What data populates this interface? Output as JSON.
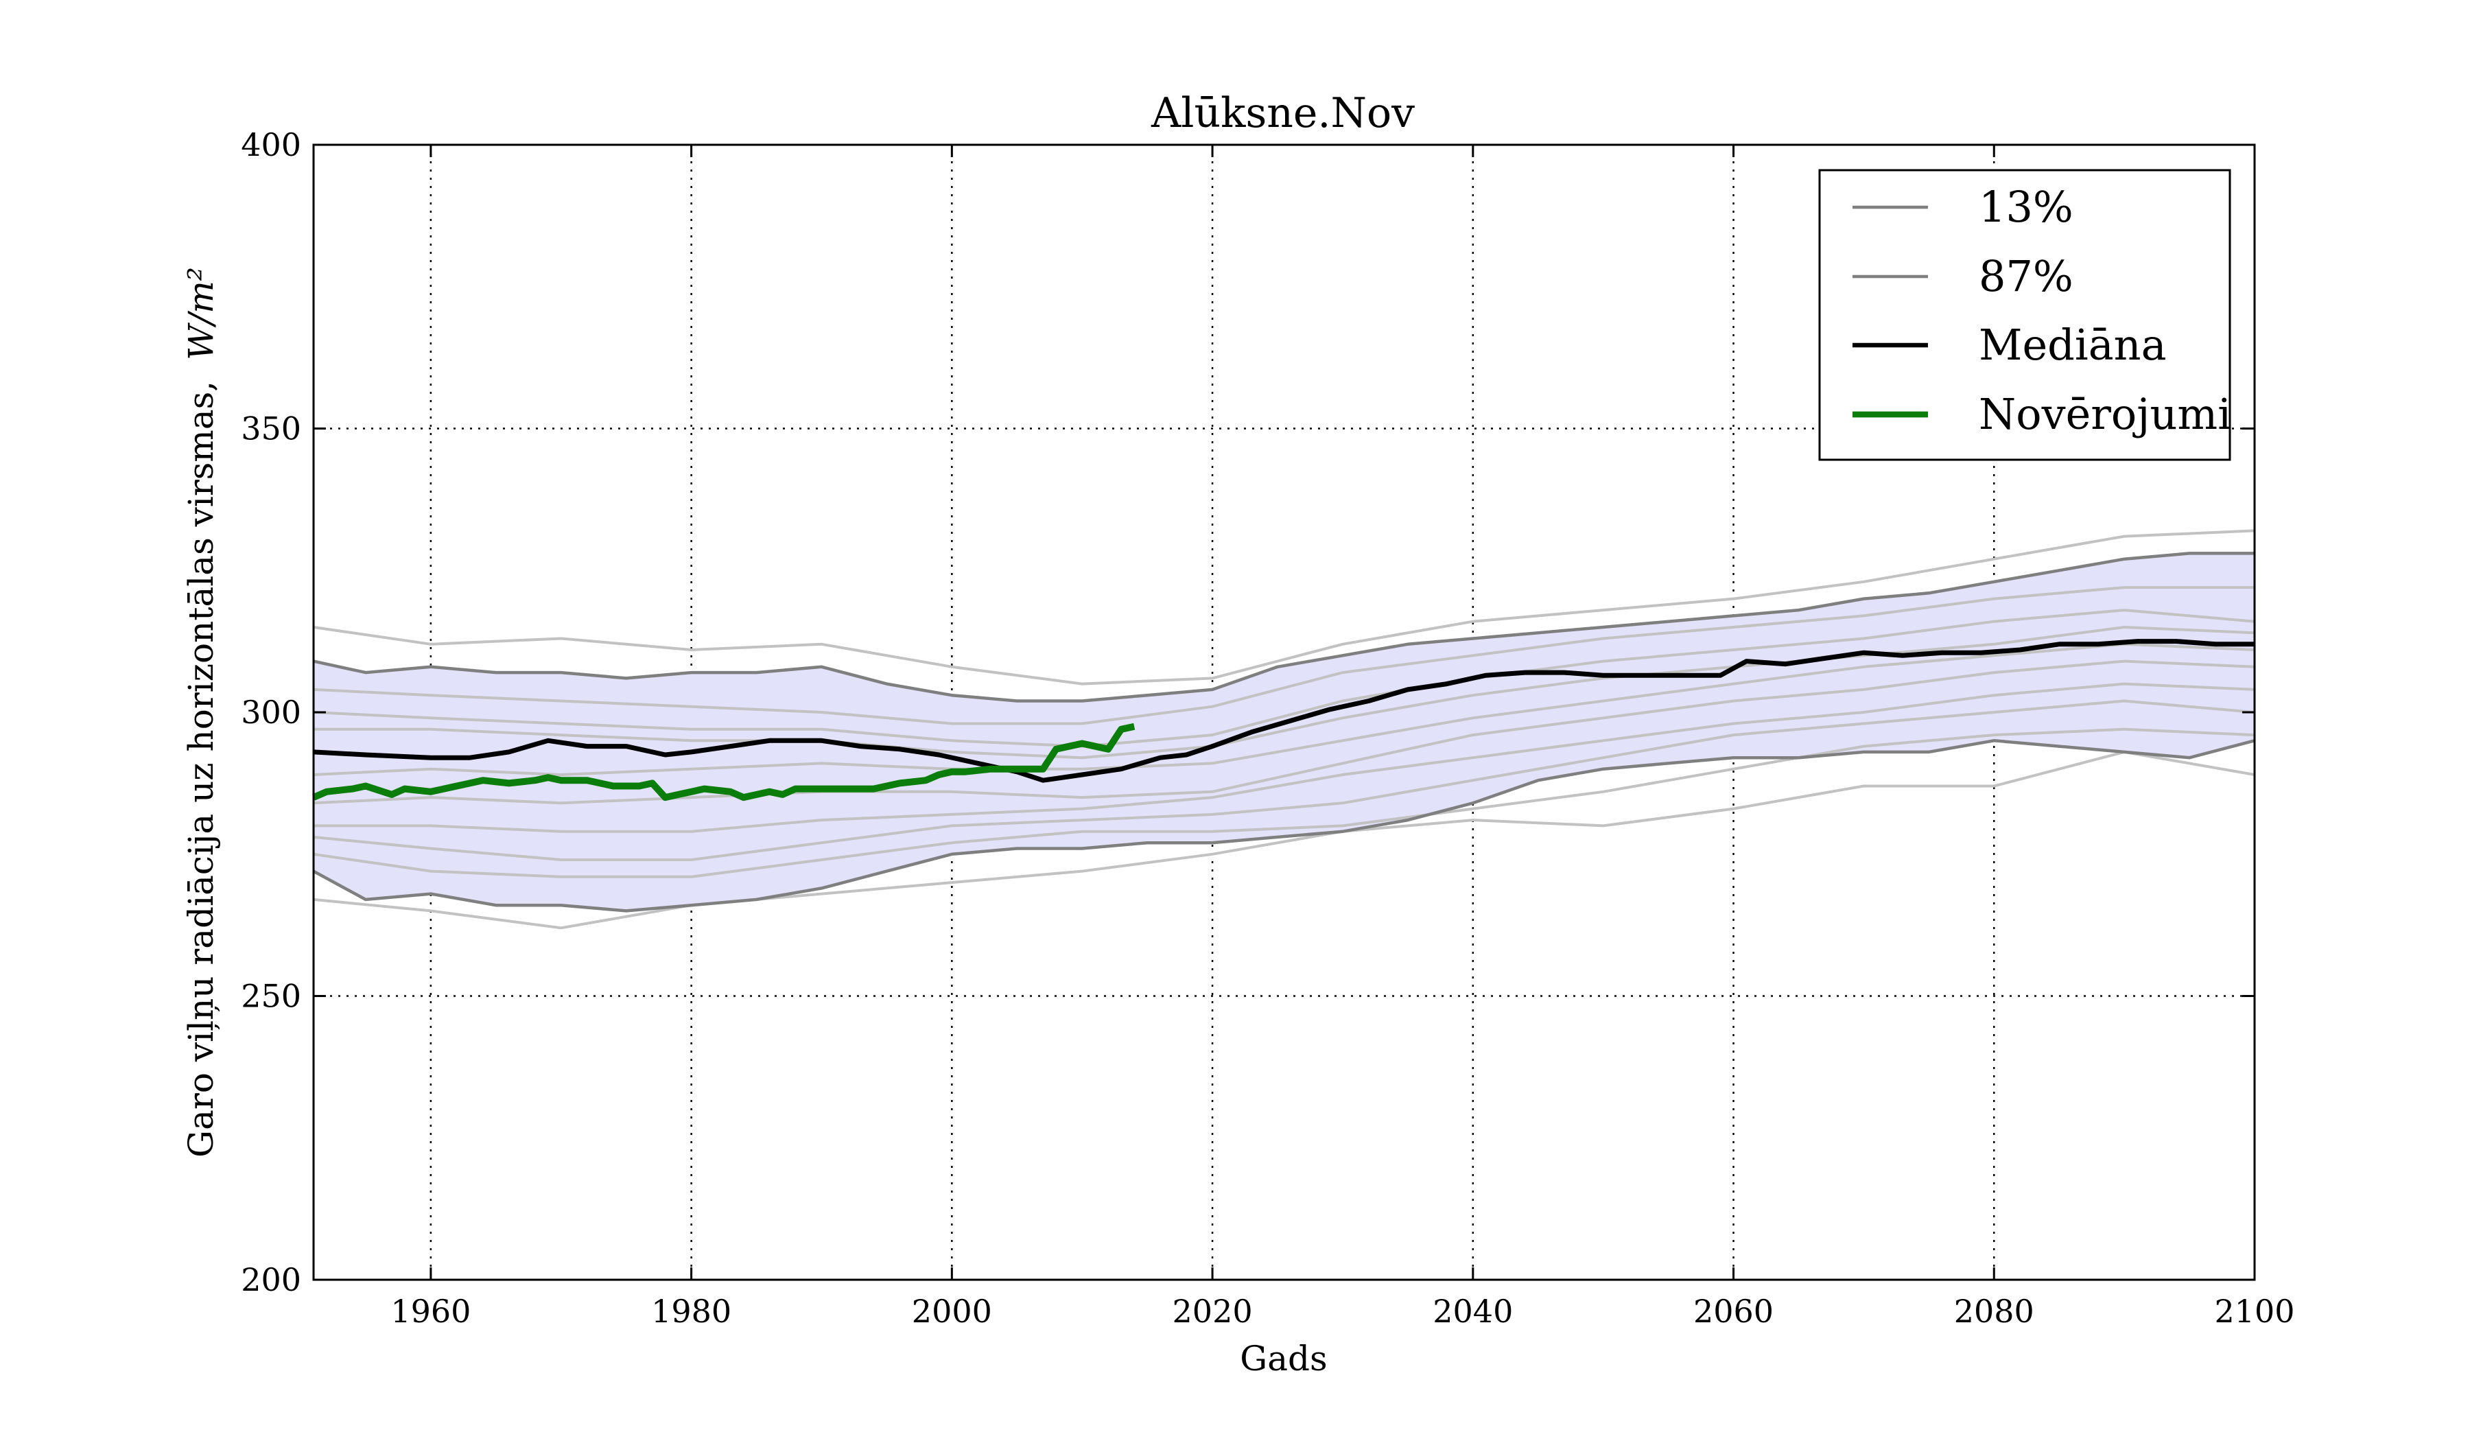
{
  "chart_data": {
    "type": "line",
    "title": "Alūksne.Nov",
    "xlabel": "Gads",
    "ylabel": "Garo viļņu radiācija uz horizontālas virsmas,",
    "ylabel_unit": "W/m²",
    "xlim": [
      1951,
      2100
    ],
    "ylim": [
      200,
      400
    ],
    "xticks": [
      1960,
      1980,
      2000,
      2020,
      2040,
      2060,
      2080,
      2100
    ],
    "yticks": [
      200,
      250,
      300,
      350,
      400
    ],
    "grid": true,
    "legend_position": "top-right",
    "colors": {
      "band_fill": "#e2e2fb",
      "percentile_line": "#7f7f7f",
      "ensemble_line": "#c2c2c2",
      "median": "#000000",
      "observations": "#0a7d0a"
    },
    "legend": [
      {
        "label": "13%",
        "color": "#7f7f7f",
        "width": 2
      },
      {
        "label": "87%",
        "color": "#7f7f7f",
        "width": 2
      },
      {
        "label": "Mediāna",
        "color": "#000000",
        "width": 3
      },
      {
        "label": "Novērojumi",
        "color": "#0a7d0a",
        "width": 4
      }
    ],
    "band_upper": {
      "x": [
        1951,
        1955,
        1960,
        1965,
        1970,
        1975,
        1980,
        1985,
        1990,
        1995,
        2000,
        2005,
        2010,
        2015,
        2020,
        2025,
        2030,
        2035,
        2040,
        2045,
        2050,
        2055,
        2060,
        2065,
        2070,
        2075,
        2080,
        2085,
        2090,
        2095,
        2100
      ],
      "values": [
        309,
        307,
        308,
        307,
        307,
        306,
        307,
        307,
        308,
        305,
        303,
        302,
        302,
        303,
        304,
        308,
        310,
        312,
        313,
        314,
        315,
        316,
        317,
        318,
        320,
        321,
        323,
        325,
        327,
        328,
        328
      ]
    },
    "band_lower": {
      "x": [
        1951,
        1955,
        1960,
        1965,
        1970,
        1975,
        1980,
        1985,
        1990,
        1995,
        2000,
        2005,
        2010,
        2015,
        2020,
        2025,
        2030,
        2035,
        2040,
        2045,
        2050,
        2055,
        2060,
        2065,
        2070,
        2075,
        2080,
        2085,
        2090,
        2095,
        2100
      ],
      "values": [
        272,
        267,
        268,
        266,
        266,
        265,
        266,
        267,
        269,
        272,
        275,
        276,
        276,
        277,
        277,
        278,
        279,
        281,
        284,
        288,
        290,
        291,
        292,
        292,
        293,
        293,
        295,
        294,
        293,
        292,
        295
      ]
    },
    "ensemble": [
      {
        "x": [
          1951,
          1960,
          1970,
          1980,
          1990,
          2000,
          2010,
          2020,
          2030,
          2040,
          2050,
          2060,
          2070,
          2080,
          2090,
          2100
        ],
        "values": [
          315,
          312,
          313,
          311,
          312,
          308,
          305,
          306,
          312,
          316,
          318,
          320,
          323,
          327,
          331,
          332
        ]
      },
      {
        "x": [
          1951,
          1960,
          1970,
          1980,
          1990,
          2000,
          2010,
          2020,
          2030,
          2040,
          2050,
          2060,
          2070,
          2080,
          2090,
          2100
        ],
        "values": [
          304,
          303,
          302,
          301,
          300,
          298,
          298,
          301,
          307,
          310,
          313,
          315,
          317,
          320,
          322,
          322
        ]
      },
      {
        "x": [
          1951,
          1960,
          1970,
          1980,
          1990,
          2000,
          2010,
          2020,
          2030,
          2040,
          2050,
          2060,
          2070,
          2080,
          2090,
          2100
        ],
        "values": [
          300,
          299,
          298,
          297,
          297,
          295,
          294,
          296,
          302,
          306,
          309,
          311,
          313,
          316,
          318,
          316
        ]
      },
      {
        "x": [
          1951,
          1960,
          1970,
          1980,
          1990,
          2000,
          2010,
          2020,
          2030,
          2040,
          2050,
          2060,
          2070,
          2080,
          2090,
          2100
        ],
        "values": [
          297,
          297,
          296,
          295,
          295,
          293,
          292,
          294,
          299,
          303,
          306,
          308,
          310,
          312,
          315,
          314
        ]
      },
      {
        "x": [
          1951,
          1960,
          1970,
          1980,
          1990,
          2000,
          2010,
          2020,
          2030,
          2040,
          2050,
          2060,
          2070,
          2080,
          2090,
          2100
        ],
        "values": [
          289,
          290,
          289,
          290,
          291,
          290,
          290,
          291,
          295,
          299,
          302,
          305,
          308,
          310,
          312,
          311
        ]
      },
      {
        "x": [
          1951,
          1960,
          1970,
          1980,
          1990,
          2000,
          2010,
          2020,
          2030,
          2040,
          2050,
          2060,
          2070,
          2080,
          2090,
          2100
        ],
        "values": [
          284,
          285,
          284,
          285,
          286,
          286,
          285,
          286,
          291,
          296,
          299,
          302,
          304,
          307,
          309,
          308
        ]
      },
      {
        "x": [
          1951,
          1960,
          1970,
          1980,
          1990,
          2000,
          2010,
          2020,
          2030,
          2040,
          2050,
          2060,
          2070,
          2080,
          2090,
          2100
        ],
        "values": [
          280,
          280,
          279,
          279,
          281,
          282,
          283,
          285,
          289,
          292,
          295,
          298,
          300,
          303,
          305,
          304
        ]
      },
      {
        "x": [
          1951,
          1960,
          1970,
          1980,
          1990,
          2000,
          2010,
          2020,
          2030,
          2040,
          2050,
          2060,
          2070,
          2080,
          2090,
          2100
        ],
        "values": [
          278,
          276,
          274,
          274,
          277,
          280,
          281,
          282,
          284,
          288,
          292,
          296,
          298,
          300,
          302,
          300
        ]
      },
      {
        "x": [
          1951,
          1960,
          1970,
          1980,
          1990,
          2000,
          2010,
          2020,
          2030,
          2040,
          2050,
          2060,
          2070,
          2080,
          2090,
          2100
        ],
        "values": [
          275,
          272,
          271,
          271,
          274,
          277,
          279,
          279,
          280,
          283,
          286,
          290,
          294,
          296,
          297,
          296
        ]
      },
      {
        "x": [
          1951,
          1960,
          1970,
          1980,
          1990,
          2000,
          2010,
          2020,
          2030,
          2040,
          2050,
          2060,
          2070,
          2080,
          2090,
          2100
        ],
        "values": [
          267,
          265,
          262,
          266,
          268,
          270,
          272,
          275,
          279,
          281,
          280,
          283,
          287,
          287,
          293,
          289
        ]
      }
    ],
    "percentile_13": {
      "x": [
        1951,
        1955,
        1960,
        1965,
        1970,
        1975,
        1980,
        1985,
        1990,
        1995,
        2000,
        2005,
        2010,
        2015,
        2020,
        2025,
        2030,
        2035,
        2040,
        2045,
        2050,
        2055,
        2060,
        2065,
        2070,
        2075,
        2080,
        2085,
        2090,
        2095,
        2100
      ],
      "values": [
        272,
        267,
        268,
        266,
        266,
        265,
        266,
        267,
        269,
        272,
        275,
        276,
        276,
        277,
        277,
        278,
        279,
        281,
        284,
        288,
        290,
        291,
        292,
        292,
        293,
        293,
        295,
        294,
        293,
        292,
        295
      ]
    },
    "percentile_87": {
      "x": [
        1951,
        1955,
        1960,
        1965,
        1970,
        1975,
        1980,
        1985,
        1990,
        1995,
        2000,
        2005,
        2010,
        2015,
        2020,
        2025,
        2030,
        2035,
        2040,
        2045,
        2050,
        2055,
        2060,
        2065,
        2070,
        2075,
        2080,
        2085,
        2090,
        2095,
        2100
      ],
      "values": [
        309,
        307,
        308,
        307,
        307,
        306,
        307,
        307,
        308,
        305,
        303,
        302,
        302,
        303,
        304,
        308,
        310,
        312,
        313,
        314,
        315,
        316,
        317,
        318,
        320,
        321,
        323,
        325,
        327,
        328,
        328
      ]
    },
    "median": {
      "x": [
        1951,
        1955,
        1960,
        1963,
        1966,
        1969,
        1972,
        1975,
        1978,
        1980,
        1983,
        1986,
        1990,
        1993,
        1996,
        1999,
        2002,
        2005,
        2007,
        2010,
        2013,
        2016,
        2018,
        2020,
        2023,
        2026,
        2029,
        2032,
        2035,
        2038,
        2041,
        2044,
        2047,
        2050,
        2053,
        2056,
        2059,
        2061,
        2064,
        2067,
        2070,
        2073,
        2076,
        2079,
        2082,
        2085,
        2088,
        2091,
        2094,
        2097,
        2100
      ],
      "values": [
        293,
        292.5,
        292,
        292,
        293,
        295,
        294,
        294,
        292.5,
        293,
        294,
        295,
        295,
        294,
        293.5,
        292.5,
        291,
        289.5,
        288,
        289,
        290,
        292,
        292.5,
        294,
        296.5,
        298.5,
        300.5,
        302,
        304,
        305,
        306.5,
        307,
        307,
        306.5,
        306.5,
        306.5,
        306.5,
        309,
        308.5,
        309.5,
        310.5,
        310,
        310.5,
        310.5,
        311,
        312,
        312,
        312.5,
        312.5,
        312,
        312
      ]
    },
    "observations": {
      "x": [
        1951,
        1952,
        1954,
        1955,
        1957,
        1958,
        1960,
        1961,
        1963,
        1964,
        1966,
        1968,
        1969,
        1970,
        1972,
        1974,
        1976,
        1977,
        1978,
        1979,
        1981,
        1983,
        1984,
        1986,
        1987,
        1988,
        1990,
        1992,
        1994,
        1996,
        1998,
        1999,
        2000,
        2001,
        2003,
        2005,
        2007,
        2008,
        2010,
        2011,
        2012,
        2013,
        2014
      ],
      "values": [
        285,
        286,
        286.5,
        287,
        285.5,
        286.5,
        286,
        286.5,
        287.5,
        288,
        287.5,
        288,
        288.5,
        288,
        288,
        287,
        287,
        287.5,
        285,
        285.5,
        286.5,
        286,
        285,
        286,
        285.5,
        286.5,
        286.5,
        286.5,
        286.5,
        287.5,
        288,
        289,
        289.5,
        289.5,
        290,
        290,
        290,
        293.5,
        294.5,
        294,
        293.5,
        297,
        297.5
      ]
    }
  }
}
